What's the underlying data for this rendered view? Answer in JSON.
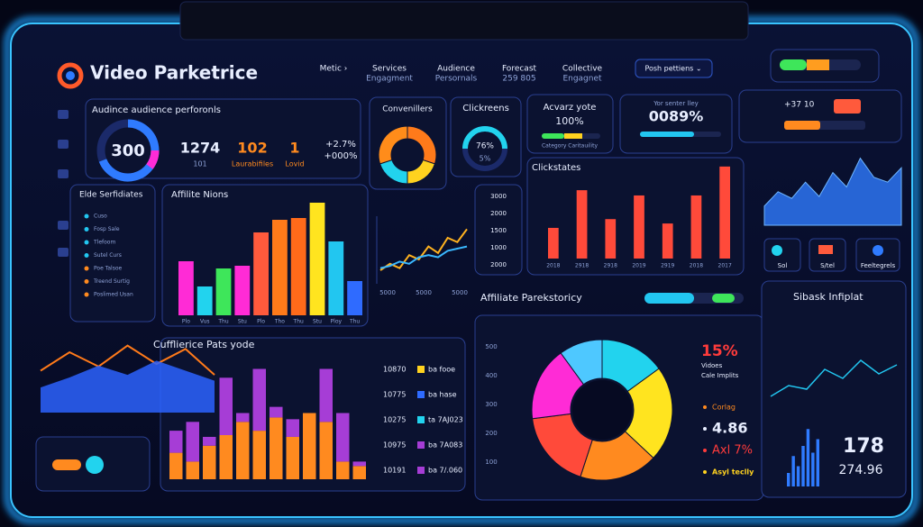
{
  "header": {
    "title": "Video Parketrice",
    "nav": [
      [
        "Metic ›"
      ],
      [
        "Services",
        "Engagment"
      ],
      [
        "Audience",
        "Persornals"
      ],
      [
        "Forecast",
        "259 805"
      ],
      [
        "Collective",
        "Engagnet"
      ]
    ],
    "dropdown": "Posh pettiens ⌄"
  },
  "kpi": {
    "title": "Audince audience perforonls",
    "gauge": "300",
    "stats": [
      "1274",
      "102",
      "1"
    ],
    "stat_labels": [
      "101",
      "Laurabifiles",
      "Lovid"
    ],
    "changes": [
      "+2.7%",
      "+000%"
    ]
  },
  "donut_card": {
    "title": "Convenillers",
    "values": [
      30,
      20,
      20,
      30
    ],
    "colors": [
      "#ff7a1a",
      "#ffd21f",
      "#22d3ee",
      "#ff8c1a"
    ]
  },
  "click_card": {
    "title": "Clickreens",
    "percent": "76%",
    "sub": "5%"
  },
  "active_card": {
    "title": "Acvarz yote",
    "value": "100%",
    "caption": "Category Caritauility"
  },
  "score_card": {
    "title": "Yor senter lley",
    "value": "0089%"
  },
  "top_right": {
    "value": "+37 10"
  },
  "list_card": {
    "title": "Elde Serfidiates",
    "items": [
      "Cuso",
      "Fosp Sale",
      "Tlefoom",
      "Sutel Curs",
      "Poe Talsoe",
      "Treend Surtig",
      "Poslimed Usan"
    ]
  },
  "affiliate": {
    "title": "Affilite Nions",
    "categories": [
      "Plo",
      "Vus",
      "Thu",
      "Stu",
      "Plo",
      "Tho",
      "Thu",
      "Stu",
      "Ploy",
      "Thu"
    ],
    "values": [
      60,
      32,
      52,
      55,
      92,
      106,
      108,
      125,
      82,
      38
    ],
    "colors": [
      "#ff2bd6",
      "#22d3ee",
      "#3ee65a",
      "#ff2bd6",
      "#ff5a3c",
      "#ff7a1a",
      "#ff6a1a",
      "#ffe41f",
      "#22c6f0",
      "#2f6bff"
    ],
    "ylim": [
      0,
      130
    ]
  },
  "trend": {
    "x_labels": [
      "5000",
      "5000",
      "5000"
    ],
    "series": [
      {
        "color": "#ffb21f",
        "values": [
          5,
          8,
          6,
          12,
          10,
          16,
          13,
          20,
          18,
          24
        ]
      },
      {
        "color": "#3ab8ff",
        "values": [
          6,
          7,
          9,
          8,
          11,
          12,
          11,
          14,
          15,
          16
        ]
      }
    ],
    "ylim": [
      0,
      30
    ]
  },
  "scale_card": {
    "labels": [
      "3000",
      "2000",
      "1500",
      "1000",
      "2000"
    ]
  },
  "clickstates": {
    "title": "Clickstates",
    "categories": [
      "2018",
      "2918",
      "2918",
      "2019",
      "2919",
      "2018",
      "2017"
    ],
    "values": [
      35,
      78,
      45,
      72,
      40,
      72,
      105
    ],
    "color": "#ff4a3a",
    "ylim": [
      0,
      110
    ]
  },
  "wave": {
    "values": [
      20,
      35,
      28,
      45,
      30,
      55,
      40,
      70,
      50,
      45,
      60
    ],
    "color": "#2f7bff",
    "ylim": [
      0,
      80
    ]
  },
  "icons": {
    "labels": [
      "Sol",
      "S/tel",
      "Feeltegrels"
    ]
  },
  "flow": {
    "title": "Cufflierice Pats yode",
    "series": [
      {
        "color": "#ff7a1a",
        "values": [
          50,
          72,
          55,
          80,
          58,
          76,
          45
        ]
      },
      {
        "color": "#2b63ff",
        "values": [
          30,
          42,
          56,
          45,
          62,
          50,
          38
        ]
      }
    ],
    "ylim": [
      0,
      100
    ]
  },
  "stacked": {
    "series": [
      {
        "color": "#ff8a1f",
        "values": [
          30,
          20,
          38,
          50,
          65,
          55,
          70,
          48,
          75,
          65,
          20,
          15
        ]
      },
      {
        "color": "#a63dd6",
        "values": [
          25,
          45,
          10,
          65,
          10,
          70,
          12,
          20,
          0,
          60,
          55,
          5
        ]
      }
    ],
    "ylim": [
      0,
      150
    ]
  },
  "legend_list": {
    "rows": [
      [
        "10870",
        "ba fooe"
      ],
      [
        "10775",
        "ba hase"
      ],
      [
        "10275",
        "ta 7AJ023"
      ],
      [
        "10975",
        "ba 7A083"
      ],
      [
        "10191",
        "ba 7/.060"
      ]
    ],
    "swatches": [
      "#ffd21f",
      "#2f6bff",
      "#22d3ee",
      "#a63dd6",
      "#a63dd6"
    ]
  },
  "pie": {
    "title": "Affiliate Parekstoricy",
    "axis_labels": [
      "500",
      "400",
      "300",
      "200",
      "100"
    ],
    "values": [
      15,
      22,
      18,
      18,
      17,
      10
    ],
    "colors": [
      "#22d3ee",
      "#ffe41f",
      "#ff8a1f",
      "#ff4a3a",
      "#ff2bd6",
      "#4ec8ff"
    ],
    "side": {
      "big": "15%",
      "lines": [
        "Vidoes",
        "Cale Implits"
      ],
      "items": [
        "Corlag",
        "4.86",
        "Axl 7%",
        "Asyl teclly"
      ]
    }
  },
  "insight": {
    "title": "Sibask Infiplat",
    "values": [
      20,
      45,
      30,
      60,
      85,
      50,
      70
    ],
    "ylim": [
      0,
      100
    ],
    "big": "178",
    "sub": "274.96"
  }
}
